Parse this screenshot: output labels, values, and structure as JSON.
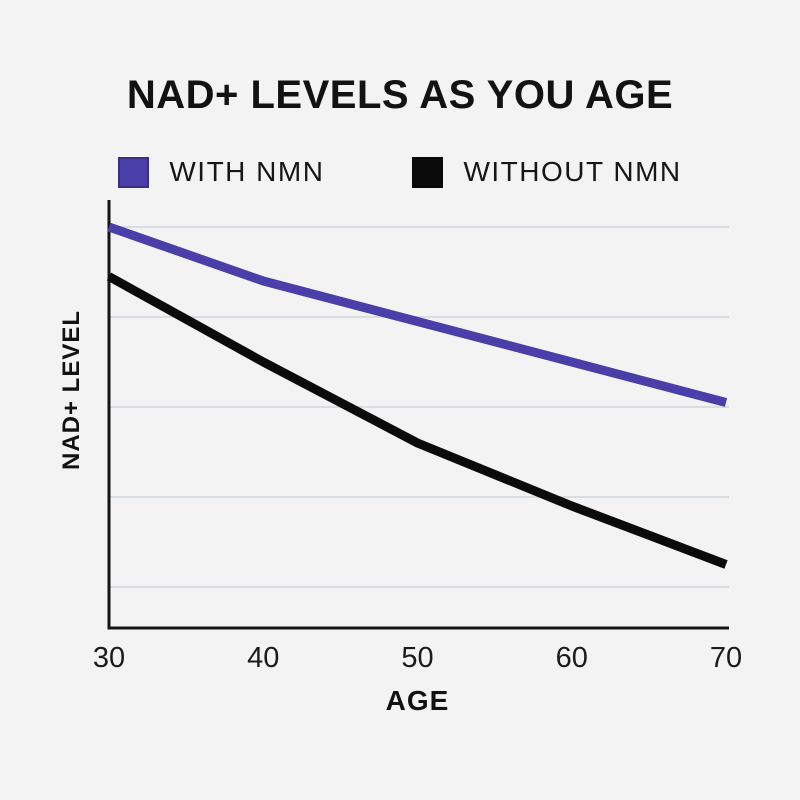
{
  "page": {
    "background": "#F4F3F4"
  },
  "colors": {
    "axis": "#141414",
    "gridline": "#D8DCE3",
    "title_text": "#121212",
    "tick_text": "#1B1B1B"
  },
  "chart_data": {
    "type": "line",
    "title": "NAD+ LEVELS AS YOU AGE",
    "xlabel": "AGE",
    "ylabel": "NAD+ LEVEL",
    "x": [
      30,
      40,
      50,
      60,
      70
    ],
    "x_tick_labels": [
      "30",
      "40",
      "50",
      "60",
      "70"
    ],
    "series": [
      {
        "name": "WITH NMN",
        "color": "#4A3EA8",
        "values": [
          100,
          88,
          79,
          70,
          61
        ]
      },
      {
        "name": "WITHOUT NMN",
        "color": "#0B0B0B",
        "values": [
          89,
          70,
          52,
          38,
          25
        ]
      }
    ],
    "y_axis": {
      "tick_labels_visible": false,
      "gridlines_at": [
        100,
        80,
        60,
        40,
        20
      ],
      "ylim": [
        11,
        106
      ]
    },
    "legend_position": "top",
    "grid": "horizontal-only",
    "line_width": 9
  }
}
